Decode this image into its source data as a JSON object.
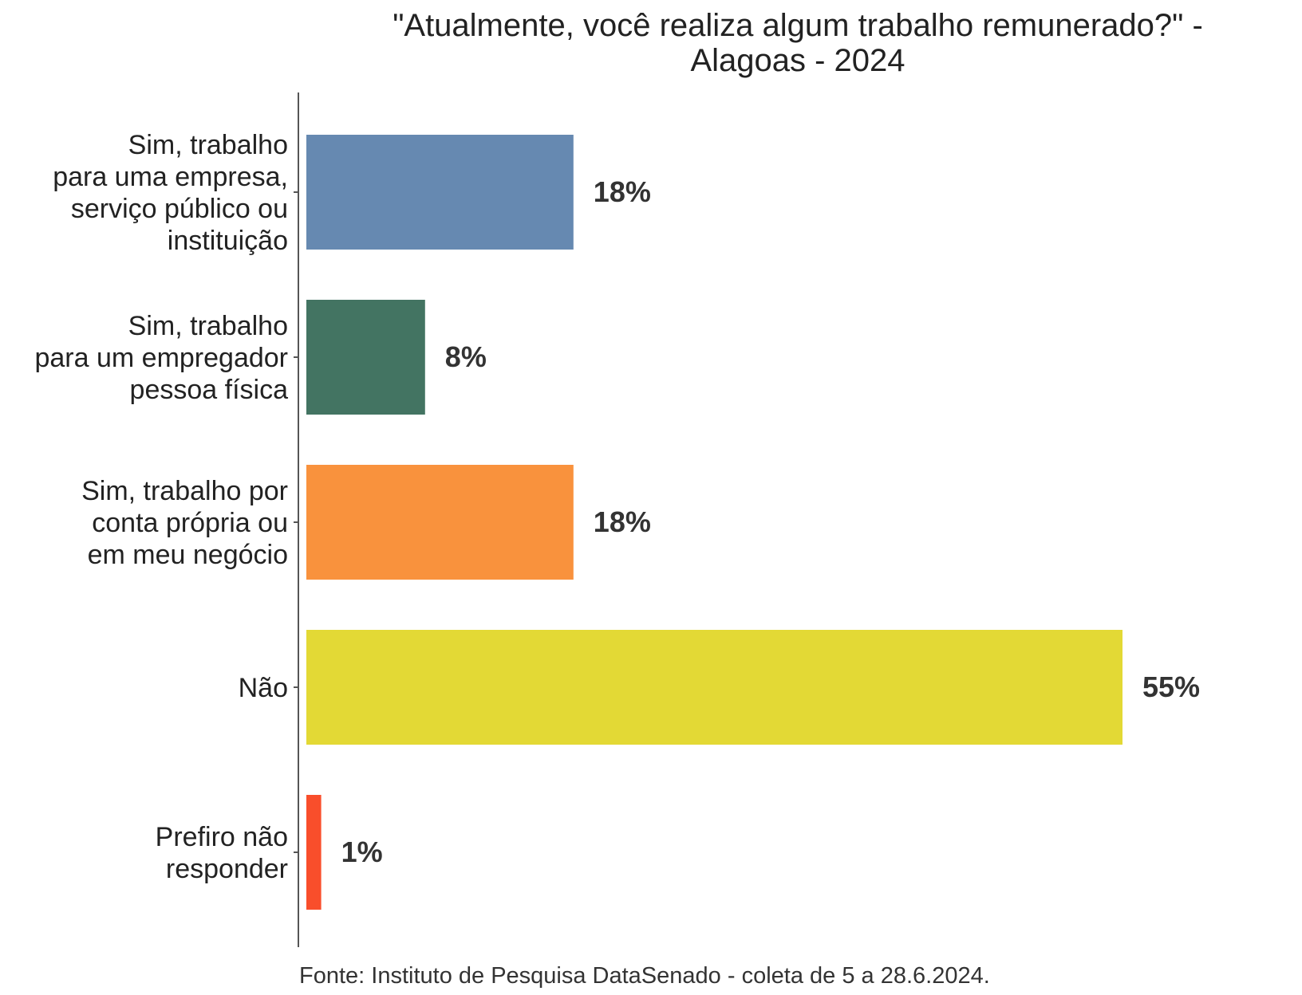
{
  "title_line1": "\"Atualmente, você realiza algum trabalho remunerado?\" -",
  "title_line2": "Alagoas - 2024",
  "source": "Fonte: Instituto de Pesquisa DataSenado - coleta de 5 a 28.6.2024.",
  "chart_data": {
    "type": "bar",
    "orientation": "horizontal",
    "title": "\"Atualmente, você realiza algum trabalho remunerado?\" - Alagoas - 2024",
    "xlabel": "",
    "ylabel": "",
    "grid": false,
    "legend": "none",
    "xlim": [
      0,
      60
    ],
    "categories": [
      "Sim, trabalho para uma empresa, serviço público ou instituição",
      "Sim, trabalho para um empregador pessoa física",
      "Sim, trabalho por conta própria ou em meu negócio",
      "Não",
      "Prefiro não responder"
    ],
    "category_lines": [
      [
        "Sim, trabalho",
        "para uma empresa,",
        "serviço público ou",
        "instituição"
      ],
      [
        "Sim, trabalho",
        "para um empregador",
        "pessoa física"
      ],
      [
        "Sim, trabalho por",
        "conta própria ou",
        "em meu negócio"
      ],
      [
        "Não"
      ],
      [
        "Prefiro não",
        "responder"
      ]
    ],
    "values": [
      18,
      8,
      18,
      55,
      1
    ],
    "labels": [
      "18%",
      "8%",
      "18%",
      "55%",
      "1%"
    ],
    "colors": [
      "#6689B1",
      "#437462",
      "#F9923D",
      "#E3D935",
      "#F94E2B"
    ]
  }
}
